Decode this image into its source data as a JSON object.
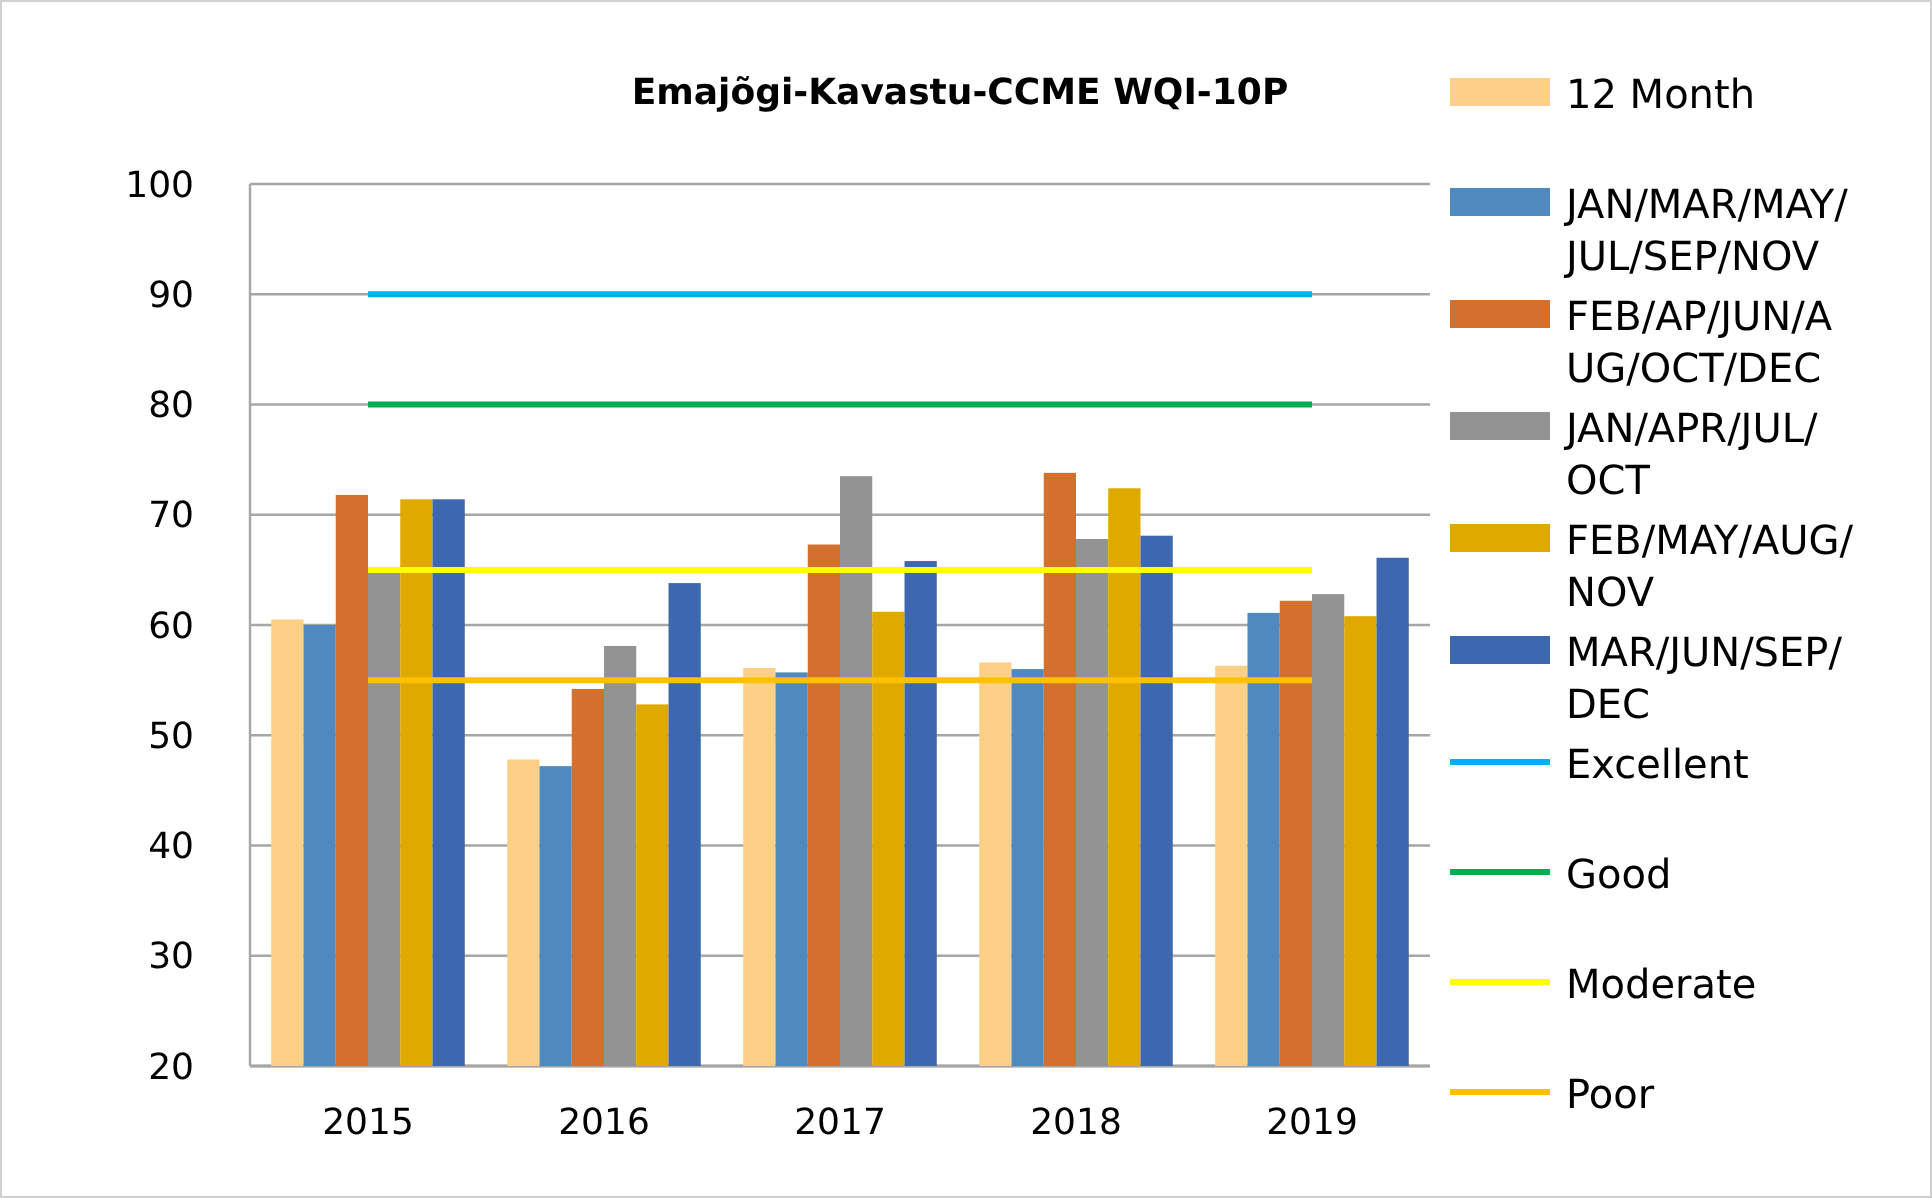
{
  "chart_data": {
    "type": "bar",
    "title": "Emajõgi-Kavastu-CCME WQI-10P",
    "categories": [
      "2015",
      "2016",
      "2017",
      "2018",
      "2019"
    ],
    "series": [
      {
        "name": "12 Month",
        "color": "#fdcf87",
        "values": [
          60.5,
          47.8,
          56.1,
          56.6,
          56.3
        ]
      },
      {
        "name": "JAN/MAR/MAY/JUL/SEP/NOV",
        "color": "#4f89bd",
        "values": [
          60,
          47.2,
          55.7,
          56,
          61.1
        ]
      },
      {
        "name": "FEB/AP/JUN/AUG/OCT/DEC",
        "color": "#d3702d",
        "values": [
          71.8,
          54.2,
          67.3,
          73.8,
          62.2
        ]
      },
      {
        "name": "JAN/APR/JUL/OCT",
        "color": "#939393",
        "values": [
          65,
          58.1,
          73.5,
          67.8,
          62.8
        ]
      },
      {
        "name": "FEB/MAY/AUG/NOV",
        "color": "#e0a900",
        "values": [
          71.4,
          52.8,
          61.2,
          72.4,
          60.8
        ]
      },
      {
        "name": "MAR/JUN/SEP/DEC",
        "color": "#3d67ae",
        "values": [
          71.4,
          63.8,
          65.8,
          68.1,
          66.1
        ]
      },
      {
        "name": "Excellent",
        "type": "line",
        "color": "#00b0f0",
        "values": [
          90,
          90,
          90,
          90,
          90
        ]
      },
      {
        "name": "Good",
        "type": "line",
        "color": "#00b050",
        "values": [
          80,
          80,
          80,
          80,
          80
        ]
      },
      {
        "name": "Moderate",
        "type": "line",
        "color": "#ffff00",
        "values": [
          65,
          65,
          65,
          65,
          65
        ]
      },
      {
        "name": "Poor",
        "type": "line",
        "color": "#ffc000",
        "values": [
          55,
          55,
          55,
          55,
          55
        ]
      }
    ],
    "ylim": [
      20,
      100
    ],
    "yticks": [
      20,
      30,
      40,
      50,
      60,
      70,
      80,
      90,
      100
    ],
    "grid": "y",
    "legend": "right",
    "marker": "none",
    "line_style": "solid"
  }
}
